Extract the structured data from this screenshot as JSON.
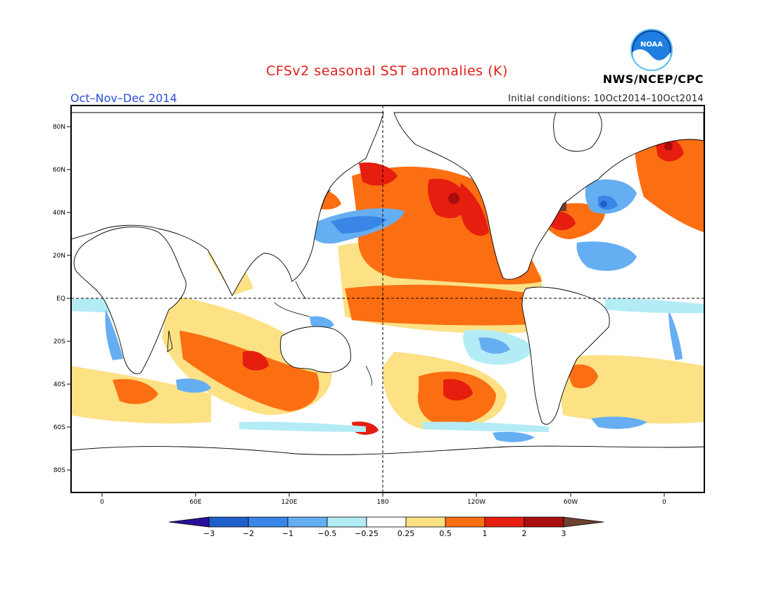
{
  "header": {
    "title": "CFSv2 seasonal SST anomalies (K)",
    "season": "Oct–Nov–Dec 2014",
    "initial_conditions": "Initial conditions: 10Oct2014–10Oct2014",
    "agency": "NWS/NCEP/CPC",
    "logo_text": "NOAA"
  },
  "map": {
    "lat_ticks": [
      "80N",
      "60N",
      "40N",
      "20N",
      "EQ",
      "20S",
      "40S",
      "60S",
      "80S"
    ],
    "lon_ticks": [
      "0",
      "60E",
      "120E",
      "180",
      "120W",
      "60W",
      "0"
    ]
  },
  "colorbar": {
    "labels": [
      "−3",
      "−2",
      "−1",
      "−0.5",
      "−0.25",
      "0.25",
      "0.5",
      "1",
      "2",
      "3"
    ],
    "colors": [
      "#2a0f9a",
      "#1f5fcc",
      "#3a86e6",
      "#66aef2",
      "#b4ecf6",
      "#ffffff",
      "#fce185",
      "#fc6e12",
      "#e61e0f",
      "#aa0d0d",
      "#6e4030"
    ]
  },
  "colors": {
    "title": "#e0201a",
    "season": "#2a4dd6"
  }
}
